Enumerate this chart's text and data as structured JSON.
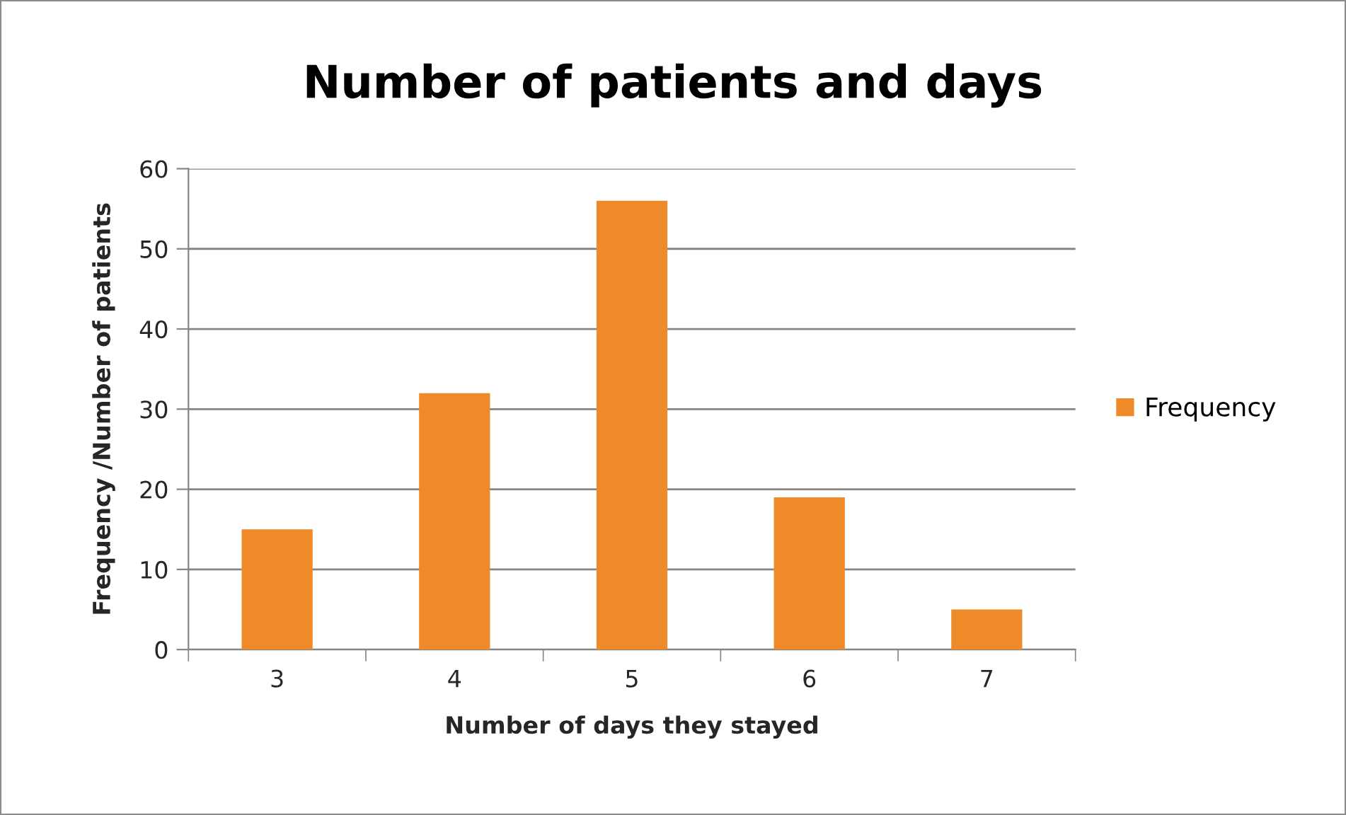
{
  "chart_data": {
    "type": "bar",
    "title": "Number of patients and days",
    "xlabel": "Number of days they stayed",
    "ylabel": "Frequency /Number of patients",
    "categories": [
      "3",
      "4",
      "5",
      "6",
      "7"
    ],
    "series": [
      {
        "name": "Frequency",
        "color": "#ee8a2a",
        "values": [
          15,
          32,
          56,
          19,
          5
        ]
      }
    ],
    "ylim": [
      0,
      60
    ],
    "yticks": [
      0,
      10,
      20,
      30,
      40,
      50,
      60
    ],
    "grid": "y",
    "legend": "right"
  }
}
